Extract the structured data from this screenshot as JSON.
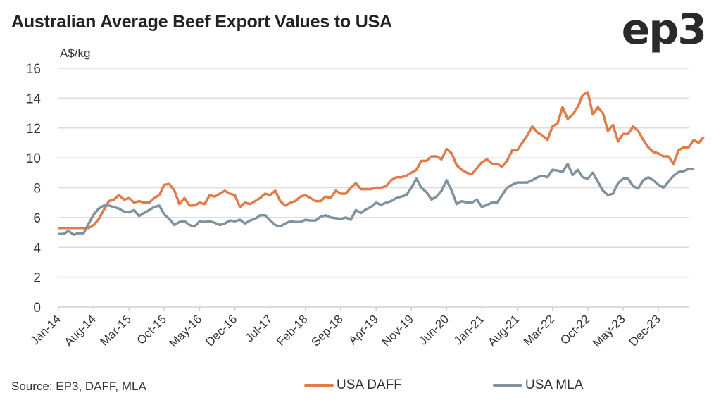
{
  "header": {
    "title": "Australian Average Beef Export Values to USA",
    "logo": "ep3"
  },
  "source": "Source: EP3, DAFF, MLA",
  "chart_data": {
    "type": "line",
    "title": "Australian Average Beef Export Values to USA",
    "xlabel": "",
    "ylabel": "A$/kg",
    "ylim": [
      0,
      16
    ],
    "yticks": [
      0,
      2,
      4,
      6,
      8,
      10,
      12,
      14,
      16
    ],
    "grid": true,
    "legend_position": "bottom",
    "x_start": "Jan-14",
    "x_frequency": "monthly",
    "x_tick_labels": [
      "Jan-14",
      "Aug-14",
      "Mar-15",
      "Oct-15",
      "May-16",
      "Dec-16",
      "Jul-17",
      "Feb-18",
      "Sep-18",
      "Apr-19",
      "Nov-19",
      "Jun-20",
      "Jan-21",
      "Aug-21",
      "Mar-22",
      "Oct-22",
      "May-23",
      "Dec-23"
    ],
    "x_tick_interval_months": 7,
    "series": [
      {
        "name": "USA DAFF",
        "color": "#e07b4a",
        "values": [
          5.3,
          5.3,
          5.3,
          5.3,
          5.3,
          5.3,
          5.3,
          5.5,
          5.9,
          6.5,
          7.1,
          7.2,
          7.5,
          7.2,
          7.3,
          7.0,
          7.1,
          7.0,
          7.0,
          7.3,
          7.5,
          8.2,
          8.25,
          7.8,
          6.9,
          7.3,
          6.8,
          6.8,
          7.0,
          6.9,
          7.5,
          7.4,
          7.6,
          7.8,
          7.6,
          7.5,
          6.7,
          7.0,
          6.9,
          7.1,
          7.3,
          7.6,
          7.5,
          7.8,
          7.1,
          6.8,
          7.0,
          7.1,
          7.4,
          7.5,
          7.3,
          7.1,
          7.1,
          7.4,
          7.3,
          7.8,
          7.6,
          7.6,
          8.0,
          8.3,
          7.9,
          7.9,
          7.9,
          8.0,
          8.0,
          8.1,
          8.5,
          8.7,
          8.7,
          8.8,
          9.0,
          9.2,
          9.8,
          9.8,
          10.1,
          10.1,
          9.9,
          10.6,
          10.3,
          9.5,
          9.2,
          9.0,
          8.9,
          9.3,
          9.7,
          9.9,
          9.6,
          9.6,
          9.4,
          9.8,
          10.5,
          10.5,
          11.0,
          11.5,
          12.1,
          11.7,
          11.5,
          11.2,
          12.1,
          12.3,
          13.4,
          12.6,
          12.9,
          13.4,
          14.2,
          14.4,
          12.9,
          13.4,
          13.0,
          11.8,
          12.2,
          11.1,
          11.6,
          11.6,
          12.1,
          11.8,
          11.2,
          10.7,
          10.4,
          10.3,
          10.1,
          10.1,
          9.6,
          10.5,
          10.7,
          10.7,
          11.2,
          11.0,
          11.4
        ],
        "x_count_note": "monthly from Jan-14"
      },
      {
        "name": "USA MLA",
        "color": "#7f929d",
        "values": [
          4.9,
          4.9,
          5.1,
          4.85,
          4.95,
          4.95,
          5.6,
          6.2,
          6.6,
          6.8,
          6.8,
          6.7,
          6.6,
          6.4,
          6.35,
          6.5,
          6.1,
          6.3,
          6.5,
          6.7,
          6.8,
          6.2,
          5.9,
          5.5,
          5.7,
          5.75,
          5.5,
          5.4,
          5.75,
          5.7,
          5.75,
          5.65,
          5.5,
          5.6,
          5.8,
          5.75,
          5.85,
          5.6,
          5.8,
          5.9,
          6.15,
          6.15,
          5.8,
          5.5,
          5.4,
          5.6,
          5.75,
          5.7,
          5.7,
          5.85,
          5.8,
          5.8,
          6.05,
          6.15,
          6.0,
          5.95,
          5.9,
          6.0,
          5.85,
          6.5,
          6.3,
          6.55,
          6.7,
          7.0,
          6.85,
          7.0,
          7.1,
          7.3,
          7.4,
          7.5,
          8.0,
          8.6,
          8.0,
          7.7,
          7.2,
          7.4,
          7.8,
          8.5,
          7.8,
          6.9,
          7.1,
          7.0,
          7.0,
          7.2,
          6.7,
          6.85,
          7.0,
          7.0,
          7.5,
          8.0,
          8.2,
          8.35,
          8.35,
          8.35,
          8.5,
          8.7,
          8.8,
          8.7,
          9.2,
          9.15,
          9.05,
          9.6,
          8.85,
          9.2,
          8.7,
          8.6,
          9.0,
          8.4,
          7.8,
          7.5,
          7.6,
          8.3,
          8.6,
          8.6,
          8.1,
          7.95,
          8.5,
          8.7,
          8.5,
          8.2,
          8.0,
          8.4,
          8.8,
          9.05,
          9.1,
          9.25,
          9.25
        ]
      }
    ]
  },
  "legend": [
    {
      "label": "USA DAFF",
      "color": "#e07b4a"
    },
    {
      "label": "USA MLA",
      "color": "#7f929d"
    }
  ]
}
